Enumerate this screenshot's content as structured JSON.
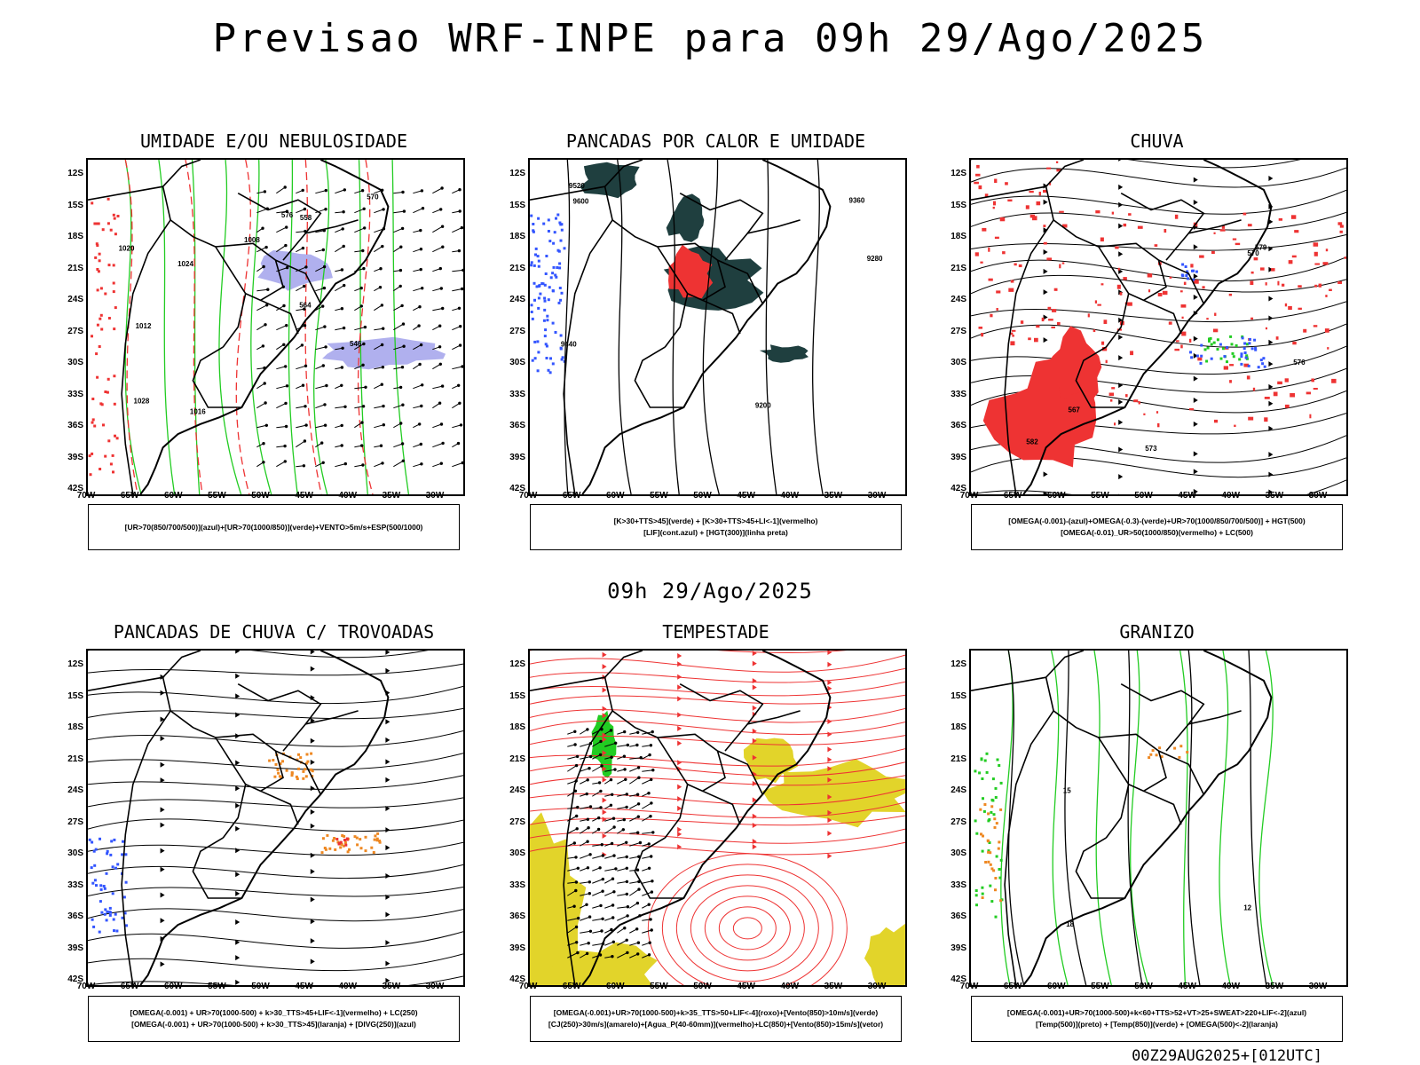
{
  "header": {
    "title": "Previsao WRF-INPE  para 09h 29/Ago/2025"
  },
  "mid_title": "09h 29/Ago/2025",
  "footer": "00Z29AUG2025+[012UTC]",
  "lat_labels": [
    "12S",
    "15S",
    "18S",
    "21S",
    "24S",
    "27S",
    "30S",
    "33S",
    "36S",
    "39S",
    "42S"
  ],
  "lon_labels": [
    "70W",
    "65W",
    "60W",
    "55W",
    "50W",
    "45W",
    "40W",
    "35W",
    "30W"
  ],
  "colors": {
    "blue": "#3355ff",
    "green": "#22cc22",
    "red": "#ee3333",
    "dark": "#1f3f3f",
    "orange": "#ee8822",
    "yellow": "#e2d42a",
    "lavender": "#b0b0ee",
    "contour_red": "#ee3333"
  },
  "panels": [
    {
      "title": "UMIDADE E/OU NEBULOSIDADE",
      "legend": [
        "[UR>70(850/700/500)](azul)+[UR>70(1000/850)](verde)+VENTO>5m/s+ESP(500/1000)"
      ],
      "contour_labels": [
        "1020",
        "1016",
        "1012",
        "1008",
        "1024",
        "1028",
        "570",
        "564",
        "558",
        "576",
        "546"
      ]
    },
    {
      "title": "PANCADAS POR CALOR E UMIDADE",
      "legend": [
        "[K>30+TTS>45](verde) + [K>30+TTS>45+LI<-1](vermelho)",
        "[LIF](cont.azul) + [HGT(300)](linha preta)"
      ],
      "contour_labels": [
        "9600",
        "9520",
        "9440",
        "9360",
        "9280",
        "9200"
      ]
    },
    {
      "title": "CHUVA",
      "legend": [
        "[OMEGA(-0.001)-(azul)+OMEGA(-0.3)-(verde)+UR>70(1000/850/700/500)] + HGT(500)",
        "[OMEGA(-0.01)_UR>50(1000/850)(vermelho) + LC(500)"
      ],
      "contour_labels": [
        "582",
        "579",
        "576",
        "573",
        "570",
        "567"
      ]
    },
    {
      "title": "PANCADAS DE CHUVA C/ TROVOADAS",
      "legend": [
        "[OMEGA(-0.001) + UR>70(1000-500) + k>30_TTS>45+LIF<-1](vermelho) + LC(250)",
        "[OMEGA(-0.001) + UR>70(1000-500) + k>30_TTS>45](laranja) + [DIVG(250)](azul)"
      ],
      "contour_labels": []
    },
    {
      "title": "TEMPESTADE",
      "legend": [
        "[OMEGA(-0.001)+UR>70(1000-500)+k>35_TTS>50+LIF<-4](roxo)+[Vento(850)>10m/s](verde)",
        "[CJ(250)>30m/s](amarelo)+[Agua_P(40-60mm)](vermelho)+LC(850)+[Vento(850)>15m/s](vetor)"
      ],
      "contour_labels": []
    },
    {
      "title": "GRANIZO",
      "legend": [
        "[OMEGA(-0.001)+UR>70(1000-500)+k<60+TTS>52+VT>25+SWEAT>220+LIF<-2](azul)",
        "[Temp(500)](preto) + [Temp(850)](verde) + [OMEGA(500)<-2](laranja)"
      ],
      "contour_labels": [
        "15",
        "18",
        "12"
      ]
    }
  ]
}
